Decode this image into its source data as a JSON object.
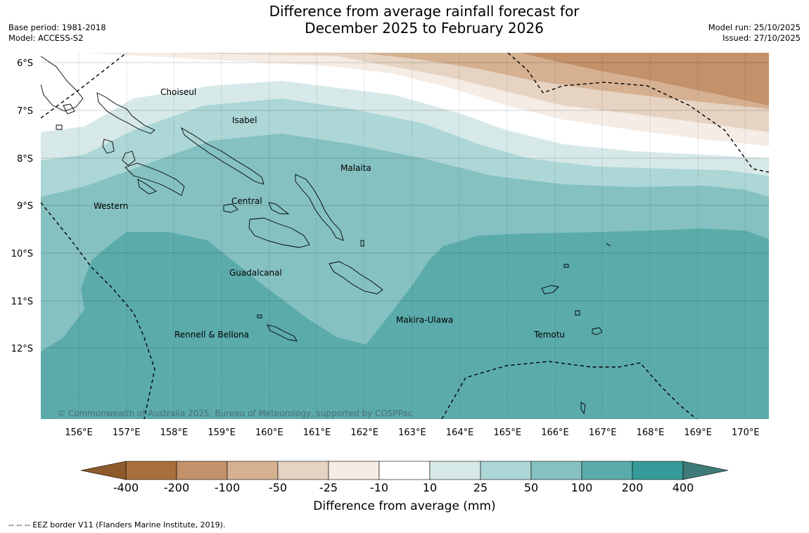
{
  "header": {
    "title_line1": "Difference from average rainfall forecast for",
    "title_line2": "December 2025 to February 2026",
    "base_period": "Base period: 1981-2018",
    "model": "Model: ACCESS-S2",
    "model_run": "Model run: 25/10/2025",
    "issued": "Issued: 27/10/2025"
  },
  "map": {
    "lat_labels": [
      "6°S",
      "7°S",
      "8°S",
      "9°S",
      "10°S",
      "11°S",
      "12°S"
    ],
    "lon_labels": [
      "156°E",
      "157°E",
      "158°E",
      "159°E",
      "160°E",
      "161°E",
      "162°E",
      "163°E",
      "164°E",
      "165°E",
      "166°E",
      "167°E",
      "168°E",
      "169°E",
      "170°E"
    ],
    "provinces": [
      "Choiseul",
      "Isabel",
      "Malaita",
      "Western",
      "Central",
      "Guadalcanal",
      "Makira-Ulawa",
      "Rennell & Bellona",
      "Temotu"
    ],
    "copyright": "© Commonwealth of Australia 2025, Bureau of Meteorology, supported by COSPPac"
  },
  "colorbar": {
    "ticks": [
      "-400",
      "-200",
      "-100",
      "-50",
      "-25",
      "-10",
      "10",
      "25",
      "50",
      "100",
      "200",
      "400"
    ],
    "colors": [
      "#a8703a",
      "#c3916a",
      "#d5b192",
      "#e6d3c2",
      "#f5ece6",
      "#ffffff",
      "#d6e9e8",
      "#add6d6",
      "#85c1c1",
      "#5cabab",
      "#369a9a"
    ],
    "label": "Difference from average (mm)"
  },
  "footnote": "--  --  -- EEZ border V11 (Flanders Marine Institute, 2019)."
}
